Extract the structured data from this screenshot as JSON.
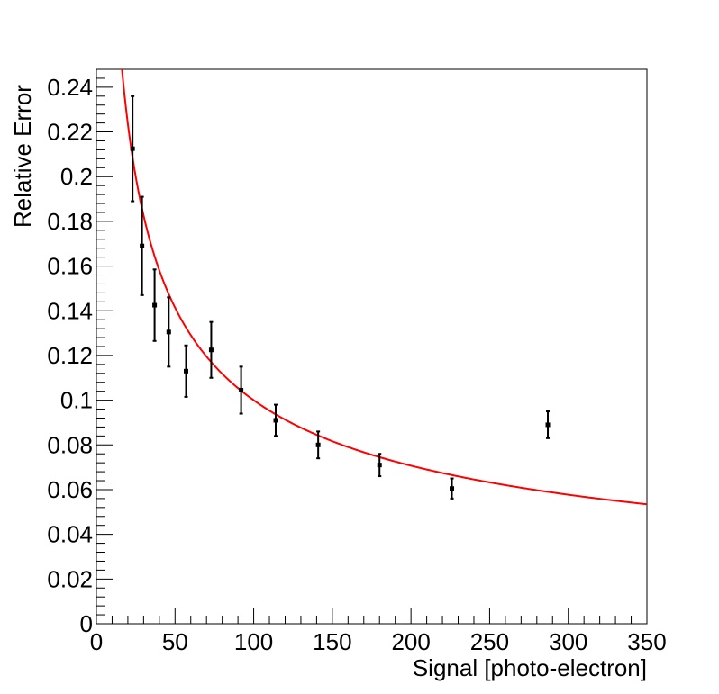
{
  "chart_data": {
    "type": "scatter",
    "xlabel": "Signal [photo-electron]",
    "ylabel": "Relative Error",
    "xlim": [
      0,
      350
    ],
    "ylim": [
      0,
      0.248
    ],
    "x_ticks": [
      0,
      50,
      100,
      150,
      200,
      250,
      300,
      350
    ],
    "x_tick_labels": [
      "0",
      "50",
      "100",
      "150",
      "200",
      "250",
      "300",
      "350"
    ],
    "y_ticks": [
      0,
      0.02,
      0.04,
      0.06,
      0.08,
      0.1,
      0.12,
      0.14,
      0.16,
      0.18,
      0.2,
      0.22,
      0.24
    ],
    "y_tick_labels": [
      "0",
      "0.02",
      "0.04",
      "0.06",
      "0.08",
      "0.1",
      "0.12",
      "0.14",
      "0.16",
      "0.18",
      "0.2",
      "0.22",
      "0.24"
    ],
    "grid": false,
    "points": [
      {
        "x": 23,
        "y": 0.2125,
        "err": 0.0235
      },
      {
        "x": 29,
        "y": 0.169,
        "err": 0.022
      },
      {
        "x": 37,
        "y": 0.1425,
        "err": 0.016
      },
      {
        "x": 46,
        "y": 0.1305,
        "err": 0.0155
      },
      {
        "x": 57,
        "y": 0.113,
        "err": 0.0115
      },
      {
        "x": 73,
        "y": 0.1225,
        "err": 0.0125
      },
      {
        "x": 92,
        "y": 0.1045,
        "err": 0.0105
      },
      {
        "x": 114,
        "y": 0.091,
        "err": 0.007
      },
      {
        "x": 141,
        "y": 0.08,
        "err": 0.006
      },
      {
        "x": 180,
        "y": 0.071,
        "err": 0.005
      },
      {
        "x": 226,
        "y": 0.0605,
        "err": 0.0045
      },
      {
        "x": 287,
        "y": 0.089,
        "err": 0.006
      }
    ],
    "fit": {
      "type": "curve",
      "formula": "a/sqrt(x)",
      "a": 1.0,
      "x_range": [
        15,
        350
      ],
      "color": "#ff0000"
    },
    "marker_color": "#000000"
  }
}
